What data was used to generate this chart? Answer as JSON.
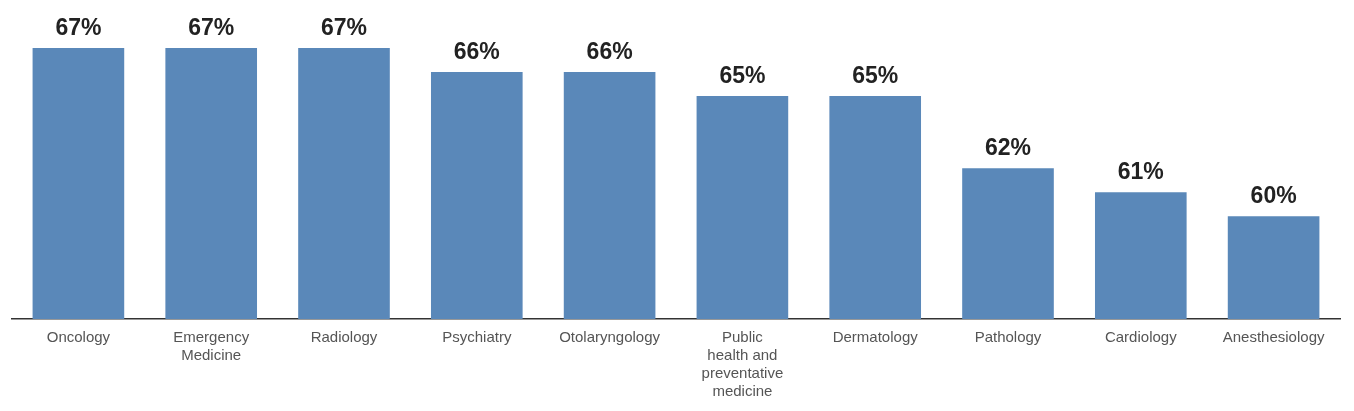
{
  "chart_data": {
    "type": "bar",
    "categories": [
      "Oncology",
      "Emergency Medicine",
      "Radiology",
      "Psychiatry",
      "Otolaryngology",
      "Public health and preventative medicine",
      "Dermatology",
      "Pathology",
      "Cardiology",
      "Anesthesiology"
    ],
    "values": [
      67,
      67,
      67,
      66,
      66,
      65,
      65,
      62,
      61,
      60
    ],
    "value_labels": [
      "67%",
      "67%",
      "67%",
      "66%",
      "66%",
      "65%",
      "65%",
      "62%",
      "61%",
      "60%"
    ],
    "color": "#5a88b9",
    "tick_labels": "x"
  }
}
